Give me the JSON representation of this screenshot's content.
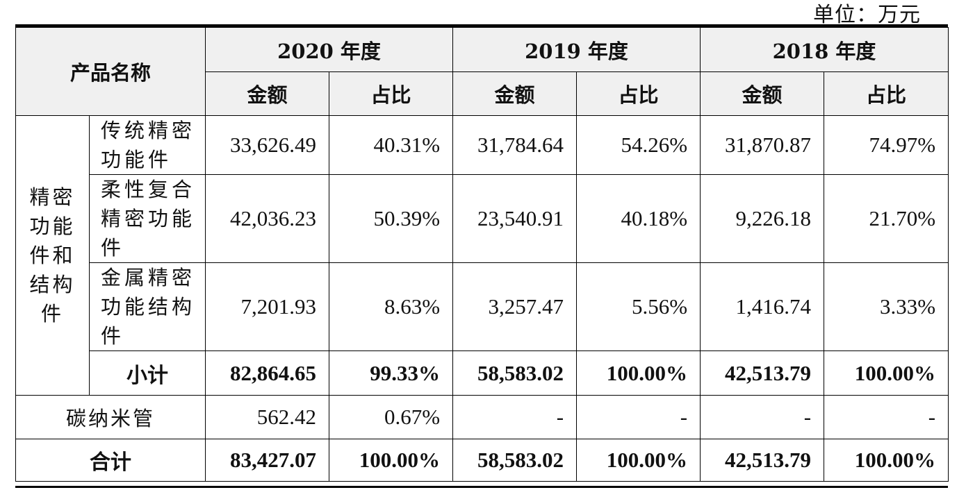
{
  "unit_label": "单位：万元",
  "header": {
    "product_name": "产品名称",
    "years": [
      "2020 年度",
      "2019 年度",
      "2018 年度"
    ],
    "amount": "金额",
    "ratio": "占比"
  },
  "category": "精密功能件和结构件",
  "rows": [
    {
      "name": "传统精密功能件",
      "values": [
        "33,626.49",
        "40.31%",
        "31,784.64",
        "54.26%",
        "31,870.87",
        "74.97%"
      ]
    },
    {
      "name": "柔性复合精密功能件",
      "values": [
        "42,036.23",
        "50.39%",
        "23,540.91",
        "40.18%",
        "9,226.18",
        "21.70%"
      ]
    },
    {
      "name": "金属精密功能结构件",
      "values": [
        "7,201.93",
        "8.63%",
        "3,257.47",
        "5.56%",
        "1,416.74",
        "3.33%"
      ]
    }
  ],
  "subtotal": {
    "name": "小计",
    "values": [
      "82,864.65",
      "99.33%",
      "58,583.02",
      "100.00%",
      "42,513.79",
      "100.00%"
    ]
  },
  "carbon": {
    "name": "碳纳米管",
    "values": [
      "562.42",
      "0.67%",
      "-",
      "-",
      "-",
      "-"
    ]
  },
  "total": {
    "name": "合计",
    "values": [
      "83,427.07",
      "100.00%",
      "58,583.02",
      "100.00%",
      "42,513.79",
      "100.00%"
    ]
  }
}
